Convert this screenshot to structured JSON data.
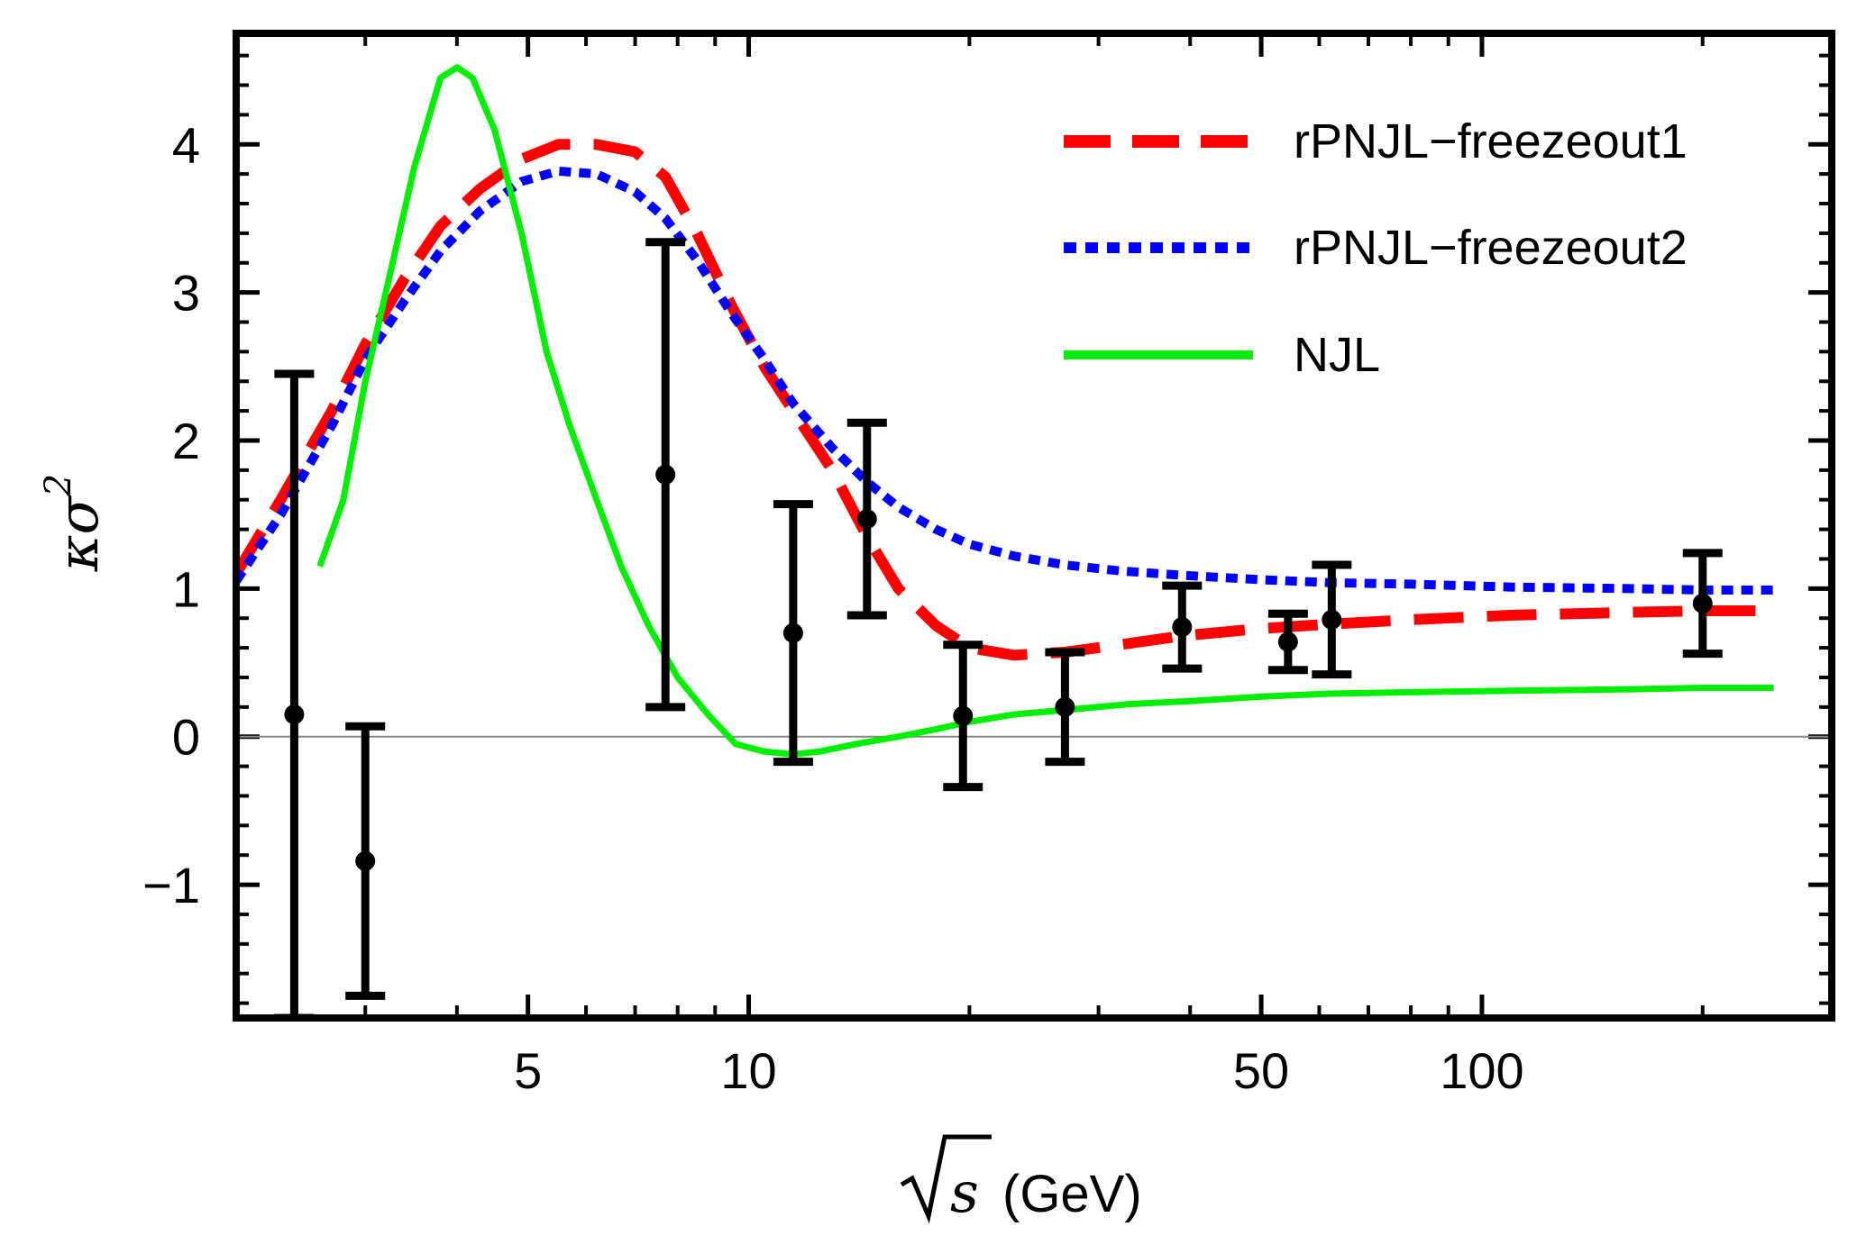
{
  "chart_data": {
    "type": "line",
    "title": "",
    "xlabel": {
      "symbol": "s",
      "unit": "(GeV)",
      "text": "√s (GeV)"
    },
    "ylabel": {
      "base": "κσ",
      "exponent": "2"
    },
    "xscale": "log",
    "xlim": [
      2.0,
      300.0
    ],
    "ylim": [
      -1.9,
      4.75
    ],
    "x_ticks": [
      5,
      10,
      50,
      100
    ],
    "x_tick_labels": [
      "5",
      "10",
      "50",
      "100"
    ],
    "y_ticks": [
      -1,
      0,
      1,
      2,
      3,
      4
    ],
    "y_tick_labels": [
      "−1",
      "0",
      "1",
      "2",
      "3",
      "4"
    ],
    "zero_line": true,
    "legend_position": "top-right",
    "series": [
      {
        "name": "rPNJL−freezeout1",
        "color": "#ff0000",
        "style": "long-dashed",
        "x": [
          2.0,
          2.3,
          2.7,
          3.0,
          3.4,
          3.8,
          4.3,
          4.9,
          5.5,
          6.2,
          7.0,
          7.7,
          8.5,
          9.5,
          10.5,
          11.5,
          13.0,
          14.5,
          16.0,
          18.0,
          20.0,
          23.0,
          27.0,
          32.0,
          39.0,
          50.0,
          62.0,
          80.0,
          110.0,
          160.0,
          200.0,
          250.0
        ],
        "y": [
          1.1,
          1.6,
          2.2,
          2.65,
          3.1,
          3.45,
          3.7,
          3.9,
          4.0,
          4.0,
          3.95,
          3.78,
          3.4,
          2.9,
          2.5,
          2.2,
          1.8,
          1.35,
          1.0,
          0.75,
          0.6,
          0.55,
          0.57,
          0.62,
          0.68,
          0.73,
          0.76,
          0.79,
          0.82,
          0.84,
          0.85,
          0.85
        ]
      },
      {
        "name": "rPNJL−freezeout2",
        "color": "#0000ff",
        "style": "dotted",
        "x": [
          2.0,
          2.3,
          2.7,
          3.0,
          3.4,
          3.8,
          4.3,
          4.9,
          5.5,
          6.2,
          7.0,
          7.7,
          8.5,
          9.5,
          10.5,
          11.5,
          13.0,
          14.5,
          16.0,
          18.0,
          20.0,
          23.0,
          27.0,
          32.0,
          39.0,
          50.0,
          62.0,
          80.0,
          110.0,
          160.0,
          200.0,
          250.0
        ],
        "y": [
          1.05,
          1.5,
          2.1,
          2.55,
          2.95,
          3.28,
          3.55,
          3.75,
          3.82,
          3.8,
          3.68,
          3.5,
          3.22,
          2.85,
          2.55,
          2.25,
          1.95,
          1.72,
          1.55,
          1.4,
          1.3,
          1.22,
          1.16,
          1.12,
          1.09,
          1.06,
          1.04,
          1.03,
          1.01,
          1.0,
          0.99,
          0.99
        ]
      },
      {
        "name": "NJL",
        "color": "#00ee00",
        "style": "solid",
        "x": [
          2.6,
          2.8,
          3.0,
          3.2,
          3.5,
          3.8,
          4.0,
          4.2,
          4.5,
          4.9,
          5.3,
          5.7,
          6.2,
          6.7,
          7.3,
          8.0,
          8.8,
          9.6,
          10.5,
          11.5,
          12.5,
          14.0,
          16.0,
          18.0,
          20.0,
          23.0,
          27.0,
          33.0,
          40.0,
          50.0,
          62.0,
          80.0,
          110.0,
          160.0,
          200.0,
          250.0
        ],
        "y": [
          1.15,
          1.6,
          2.4,
          3.0,
          3.85,
          4.45,
          4.52,
          4.45,
          4.1,
          3.4,
          2.6,
          2.1,
          1.6,
          1.15,
          0.75,
          0.4,
          0.15,
          -0.05,
          -0.1,
          -0.12,
          -0.1,
          -0.05,
          0.0,
          0.05,
          0.1,
          0.15,
          0.18,
          0.22,
          0.24,
          0.27,
          0.29,
          0.3,
          0.31,
          0.32,
          0.33,
          0.33
        ]
      }
    ],
    "data_points": {
      "name": "data",
      "color": "#000000",
      "points": [
        {
          "x": 2.4,
          "y": 0.15,
          "ylow": -1.9,
          "yhigh": 2.45
        },
        {
          "x": 3.0,
          "y": -0.84,
          "ylow": -1.75,
          "yhigh": 0.07
        },
        {
          "x": 7.7,
          "y": 1.77,
          "ylow": 0.2,
          "yhigh": 3.34
        },
        {
          "x": 11.5,
          "y": 0.7,
          "ylow": -0.17,
          "yhigh": 1.57
        },
        {
          "x": 14.5,
          "y": 1.47,
          "ylow": 0.82,
          "yhigh": 2.12
        },
        {
          "x": 19.6,
          "y": 0.14,
          "ylow": -0.34,
          "yhigh": 0.62
        },
        {
          "x": 27.0,
          "y": 0.2,
          "ylow": -0.17,
          "yhigh": 0.57
        },
        {
          "x": 39.0,
          "y": 0.74,
          "ylow": 0.46,
          "yhigh": 1.02
        },
        {
          "x": 54.4,
          "y": 0.64,
          "ylow": 0.45,
          "yhigh": 0.83
        },
        {
          "x": 62.4,
          "y": 0.79,
          "ylow": 0.42,
          "yhigh": 1.16
        },
        {
          "x": 200.0,
          "y": 0.9,
          "ylow": 0.56,
          "yhigh": 1.24
        }
      ]
    }
  }
}
